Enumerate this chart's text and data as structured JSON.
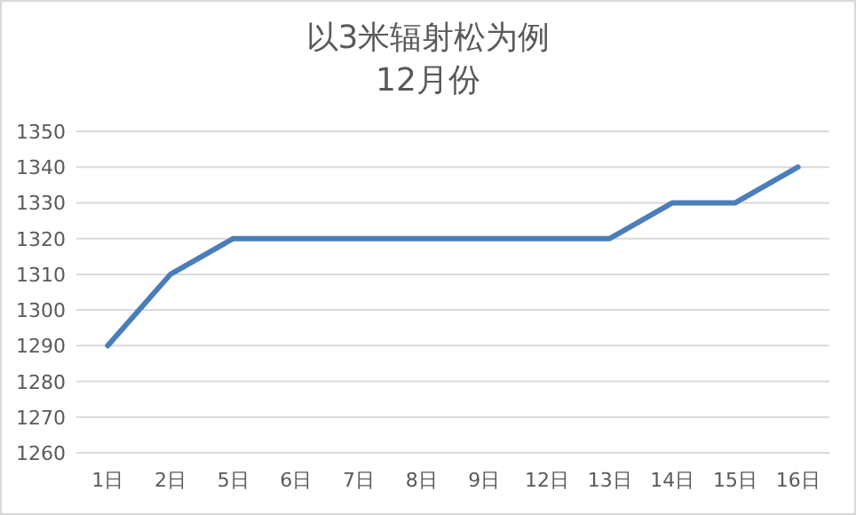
{
  "chart_data": {
    "type": "line",
    "title": "以3米辐射松为例",
    "subtitle": "12月份",
    "categories": [
      "1日",
      "2日",
      "5日",
      "6日",
      "7日",
      "8日",
      "9日",
      "12日",
      "13日",
      "14日",
      "15日",
      "16日"
    ],
    "series": [
      {
        "color": "#4a7ebb",
        "values": [
          1290,
          1310,
          1320,
          1320,
          1320,
          1320,
          1320,
          1320,
          1320,
          1330,
          1330,
          1340
        ]
      }
    ],
    "ylim": [
      1260,
      1350
    ],
    "yticks": [
      1260,
      1270,
      1280,
      1290,
      1300,
      1310,
      1320,
      1330,
      1340,
      1350
    ],
    "grid": "y",
    "marker": "none",
    "line_style": "solid"
  }
}
